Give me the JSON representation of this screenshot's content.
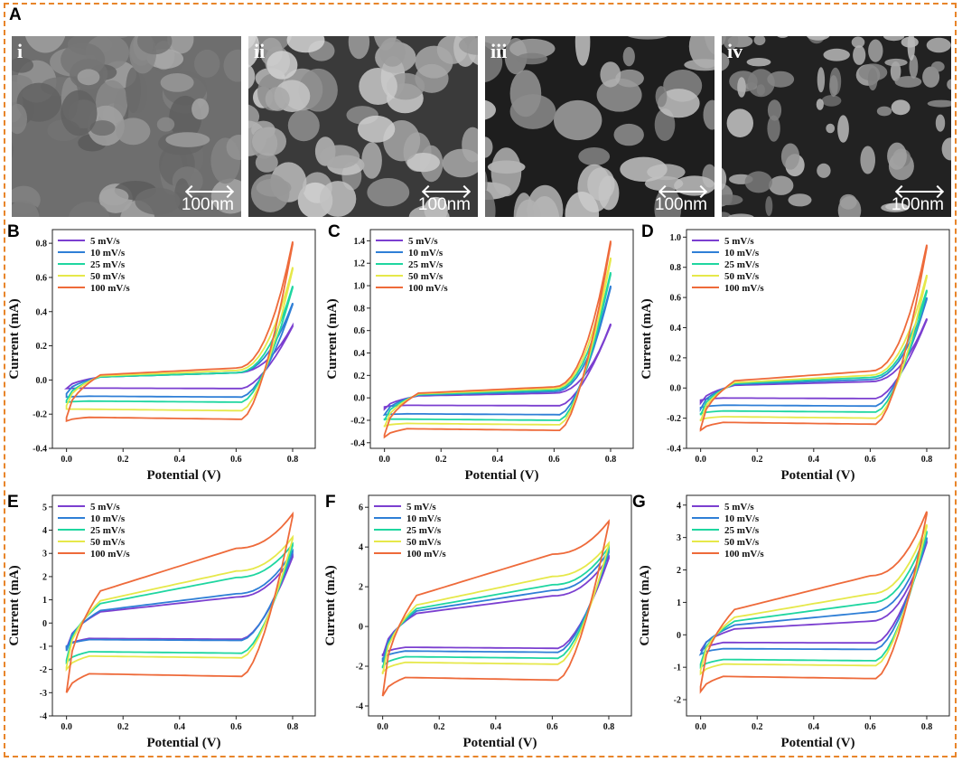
{
  "panels": {
    "A": "A",
    "B": "B",
    "C": "C",
    "D": "D",
    "E": "E",
    "F": "F",
    "G": "G"
  },
  "sem_images": [
    {
      "label": "i",
      "scale": "100nm"
    },
    {
      "label": "ii",
      "scale": "100nm"
    },
    {
      "label": "iii",
      "scale": "100nm"
    },
    {
      "label": "iv",
      "scale": "100nm"
    }
  ],
  "legend_series": [
    "5 mV/s",
    "10 mV/s",
    "25 mV/s",
    "50 mV/s",
    "100 mV/s"
  ],
  "series_colors": [
    "#7b3fd0",
    "#2f7fd6",
    "#1fd6a0",
    "#e6e84a",
    "#ee6a3a"
  ],
  "frame_color": "#e8852a",
  "chart_data": [
    {
      "panel": "B",
      "type": "line",
      "xlabel": "Potential (V)",
      "ylabel": "Current (mA)",
      "xlim": [
        -0.05,
        0.88
      ],
      "ylim": [
        -0.4,
        0.88
      ],
      "xticks": [
        "0.0",
        "0.2",
        "0.4",
        "0.6",
        "0.8"
      ],
      "yticks": [
        "-0.4",
        "-0.2",
        "0.0",
        "0.2",
        "0.4",
        "0.6",
        "0.8"
      ],
      "series": [
        {
          "name": "5 mV/s",
          "peak": 0.32,
          "upper_start": -0.05,
          "upper_mid": 0.03,
          "lower_start": -0.05,
          "lower_mid": -0.05
        },
        {
          "name": "10 mV/s",
          "peak": 0.45,
          "upper_start": -0.08,
          "upper_mid": 0.03,
          "lower_start": -0.1,
          "lower_mid": -0.1
        },
        {
          "name": "25 mV/s",
          "peak": 0.55,
          "upper_start": -0.12,
          "upper_mid": 0.03,
          "lower_start": -0.13,
          "lower_mid": -0.13
        },
        {
          "name": "50 mV/s",
          "peak": 0.66,
          "upper_start": -0.15,
          "upper_mid": 0.04,
          "lower_start": -0.17,
          "lower_mid": -0.18
        },
        {
          "name": "100 mV/s",
          "peak": 0.81,
          "upper_start": -0.22,
          "upper_mid": 0.05,
          "lower_start": -0.24,
          "lower_mid": -0.23
        }
      ]
    },
    {
      "panel": "C",
      "type": "line",
      "xlabel": "Potential (V)",
      "ylabel": "Current (mA)",
      "xlim": [
        -0.05,
        0.88
      ],
      "ylim": [
        -0.45,
        1.5
      ],
      "xticks": [
        "0.0",
        "0.2",
        "0.4",
        "0.6",
        "0.8"
      ],
      "yticks": [
        "-0.4",
        "-0.2",
        "0.0",
        "0.2",
        "0.4",
        "0.6",
        "0.8",
        "1.0",
        "1.2",
        "1.4"
      ],
      "series": [
        {
          "name": "5 mV/s",
          "peak": 0.66,
          "upper_start": -0.1,
          "upper_mid": 0.03,
          "lower_start": -0.08,
          "lower_mid": -0.07
        },
        {
          "name": "10 mV/s",
          "peak": 1.0,
          "upper_start": -0.15,
          "upper_mid": 0.04,
          "lower_start": -0.15,
          "lower_mid": -0.15
        },
        {
          "name": "25 mV/s",
          "peak": 1.12,
          "upper_start": -0.2,
          "upper_mid": 0.05,
          "lower_start": -0.19,
          "lower_mid": -0.2
        },
        {
          "name": "50 mV/s",
          "peak": 1.25,
          "upper_start": -0.26,
          "upper_mid": 0.06,
          "lower_start": -0.25,
          "lower_mid": -0.24
        },
        {
          "name": "100 mV/s",
          "peak": 1.4,
          "upper_start": -0.33,
          "upper_mid": 0.07,
          "lower_start": -0.35,
          "lower_mid": -0.29
        }
      ]
    },
    {
      "panel": "D",
      "type": "line",
      "xlabel": "Potential (V)",
      "ylabel": "Current (mA)",
      "xlim": [
        -0.05,
        0.88
      ],
      "ylim": [
        -0.4,
        1.05
      ],
      "xticks": [
        "0.0",
        "0.2",
        "0.4",
        "0.6",
        "0.8"
      ],
      "yticks": [
        "-0.4",
        "-0.2",
        "0.0",
        "0.2",
        "0.4",
        "0.6",
        "0.8",
        "1.0"
      ],
      "series": [
        {
          "name": "5 mV/s",
          "peak": 0.46,
          "upper_start": -0.1,
          "upper_mid": 0.03,
          "lower_start": -0.08,
          "lower_mid": -0.07
        },
        {
          "name": "10 mV/s",
          "peak": 0.6,
          "upper_start": -0.14,
          "upper_mid": 0.04,
          "lower_start": -0.13,
          "lower_mid": -0.12
        },
        {
          "name": "25 mV/s",
          "peak": 0.65,
          "upper_start": -0.18,
          "upper_mid": 0.05,
          "lower_start": -0.17,
          "lower_mid": -0.16
        },
        {
          "name": "50 mV/s",
          "peak": 0.75,
          "upper_start": -0.22,
          "upper_mid": 0.06,
          "lower_start": -0.21,
          "lower_mid": -0.2
        },
        {
          "name": "100 mV/s",
          "peak": 0.95,
          "upper_start": -0.27,
          "upper_mid": 0.08,
          "lower_start": -0.28,
          "lower_mid": -0.24
        }
      ]
    },
    {
      "panel": "E",
      "type": "line",
      "xlabel": "Potential (V)",
      "ylabel": "Current (mA)",
      "xlim": [
        -0.05,
        0.88
      ],
      "ylim": [
        -4,
        5.5
      ],
      "xticks": [
        "0.0",
        "0.2",
        "0.4",
        "0.6",
        "0.8"
      ],
      "yticks": [
        "-4",
        "-3",
        "-2",
        "-1",
        "0",
        "1",
        "2",
        "3",
        "4",
        "5"
      ],
      "series": [
        {
          "name": "5 mV/s",
          "peak": 2.9,
          "upper_start": -1.1,
          "upper_mid": 0.8,
          "lower_start": -1.0,
          "lower_mid": -0.7
        },
        {
          "name": "10 mV/s",
          "peak": 3.1,
          "upper_start": -1.2,
          "upper_mid": 0.9,
          "lower_start": -1.0,
          "lower_mid": -0.75
        },
        {
          "name": "25 mV/s",
          "peak": 3.4,
          "upper_start": -1.6,
          "upper_mid": 1.4,
          "lower_start": -1.7,
          "lower_mid": -1.3
        },
        {
          "name": "50 mV/s",
          "peak": 3.7,
          "upper_start": -1.9,
          "upper_mid": 1.6,
          "lower_start": -2.0,
          "lower_mid": -1.5
        },
        {
          "name": "100 mV/s",
          "peak": 4.7,
          "upper_start": -3.0,
          "upper_mid": 2.3,
          "lower_start": -3.0,
          "lower_mid": -2.3
        }
      ]
    },
    {
      "panel": "F",
      "type": "line",
      "xlabel": "Potential (V)",
      "ylabel": "Current (mA)",
      "xlim": [
        -0.05,
        0.88
      ],
      "ylim": [
        -4.5,
        6.6
      ],
      "xticks": [
        "0.0",
        "0.2",
        "0.4",
        "0.6",
        "0.8"
      ],
      "yticks": [
        "-4",
        "-2",
        "0",
        "2",
        "4",
        "6"
      ],
      "series": [
        {
          "name": "5 mV/s",
          "peak": 3.5,
          "upper_start": -1.5,
          "upper_mid": 1.1,
          "lower_start": -1.4,
          "lower_mid": -1.1
        },
        {
          "name": "10 mV/s",
          "peak": 3.8,
          "upper_start": -1.8,
          "upper_mid": 1.3,
          "lower_start": -1.6,
          "lower_mid": -1.3
        },
        {
          "name": "25 mV/s",
          "peak": 4.0,
          "upper_start": -2.1,
          "upper_mid": 1.5,
          "lower_start": -2.0,
          "lower_mid": -1.6
        },
        {
          "name": "50 mV/s",
          "peak": 4.2,
          "upper_start": -2.4,
          "upper_mid": 1.8,
          "lower_start": -2.3,
          "lower_mid": -1.9
        },
        {
          "name": "100 mV/s",
          "peak": 5.3,
          "upper_start": -3.5,
          "upper_mid": 2.6,
          "lower_start": -3.5,
          "lower_mid": -2.7
        }
      ]
    },
    {
      "panel": "G",
      "type": "line",
      "xlabel": "Potential (V)",
      "ylabel": "Current (mA)",
      "xlim": [
        -0.05,
        0.88
      ],
      "ylim": [
        -2.5,
        4.3
      ],
      "xticks": [
        "0.0",
        "0.2",
        "0.4",
        "0.6",
        "0.8"
      ],
      "yticks": [
        "-2",
        "-1",
        "0",
        "1",
        "2",
        "3",
        "4"
      ],
      "series": [
        {
          "name": "5 mV/s",
          "peak": 2.9,
          "upper_start": -0.5,
          "upper_mid": 0.3,
          "lower_start": -0.5,
          "lower_mid": -0.25
        },
        {
          "name": "10 mV/s",
          "peak": 3.0,
          "upper_start": -0.6,
          "upper_mid": 0.5,
          "lower_start": -0.6,
          "lower_mid": -0.45
        },
        {
          "name": "25 mV/s",
          "peak": 3.2,
          "upper_start": -0.9,
          "upper_mid": 0.7,
          "lower_start": -1.0,
          "lower_mid": -0.8
        },
        {
          "name": "50 mV/s",
          "peak": 3.4,
          "upper_start": -1.1,
          "upper_mid": 0.9,
          "lower_start": -1.2,
          "lower_mid": -0.95
        },
        {
          "name": "100 mV/s",
          "peak": 3.8,
          "upper_start": -1.6,
          "upper_mid": 1.3,
          "lower_start": -1.75,
          "lower_mid": -1.35
        }
      ]
    }
  ]
}
